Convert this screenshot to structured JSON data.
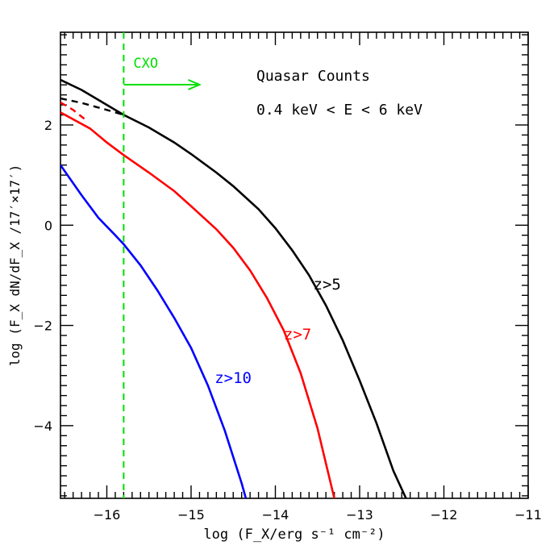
{
  "chart_data": {
    "type": "line",
    "title": "Quasar Counts",
    "subtitle": "0.4 keV < E < 6 keV",
    "xlabel": "log (F_X/erg s⁻¹ cm⁻²)",
    "ylabel": "log (F_X dN/dF_X /17′×17′)",
    "xlim": [
      -16.55,
      -11.0
    ],
    "ylim": [
      -5.45,
      3.85
    ],
    "x_ticks": [
      -16,
      -15,
      -14,
      -13,
      -12,
      -11
    ],
    "x_tick_labels": [
      "−16",
      "−15",
      "−14",
      "−13",
      "−12",
      "−11"
    ],
    "y_ticks": [
      -4,
      -2,
      0,
      2
    ],
    "y_tick_labels": [
      "−4",
      "−2",
      "0",
      "2"
    ],
    "grid": false,
    "legend": "none",
    "series": [
      {
        "name": "z>5",
        "color": "#000000",
        "x": [
          -16.55,
          -16.3,
          -16.0,
          -15.8,
          -15.5,
          -15.2,
          -15.0,
          -14.7,
          -14.5,
          -14.2,
          -14.0,
          -13.8,
          -13.6,
          -13.4,
          -13.2,
          -13.0,
          -12.8,
          -12.6,
          -12.45
        ],
        "y": [
          2.9,
          2.7,
          2.4,
          2.2,
          1.95,
          1.65,
          1.42,
          1.05,
          0.78,
          0.32,
          -0.06,
          -0.5,
          -1.0,
          -1.6,
          -2.3,
          -3.1,
          -3.95,
          -4.9,
          -5.45
        ]
      },
      {
        "name": "z>7",
        "color": "#ff0000",
        "x": [
          -16.55,
          -16.2,
          -16.0,
          -15.8,
          -15.5,
          -15.2,
          -15.0,
          -14.7,
          -14.5,
          -14.3,
          -14.1,
          -13.9,
          -13.7,
          -13.5,
          -13.3
        ],
        "y": [
          2.25,
          1.93,
          1.65,
          1.4,
          1.05,
          0.68,
          0.38,
          -0.08,
          -0.45,
          -0.9,
          -1.45,
          -2.1,
          -2.95,
          -4.05,
          -5.45
        ]
      },
      {
        "name": "z>10",
        "color": "#0000ff",
        "x": [
          -16.55,
          -16.3,
          -16.1,
          -15.9,
          -15.8,
          -15.6,
          -15.4,
          -15.2,
          -15.0,
          -14.8,
          -14.6,
          -14.4,
          -14.35
        ],
        "y": [
          1.2,
          0.6,
          0.15,
          -0.2,
          -0.38,
          -0.8,
          -1.3,
          -1.85,
          -2.45,
          -3.2,
          -4.1,
          -5.15,
          -5.45
        ]
      }
    ],
    "dashed_extensions": [
      {
        "color": "#000000",
        "x": [
          -16.55,
          -16.3,
          -16.0,
          -15.8
        ],
        "y": [
          2.53,
          2.44,
          2.3,
          2.2
        ]
      },
      {
        "color": "#ff0000",
        "x": [
          -16.55,
          -16.4,
          -16.25
        ],
        "y": [
          2.45,
          2.3,
          2.1
        ]
      }
    ],
    "vline": {
      "x": -15.8,
      "color": "#00e000",
      "label": "CXO",
      "arrow_to_x": -14.9
    }
  }
}
